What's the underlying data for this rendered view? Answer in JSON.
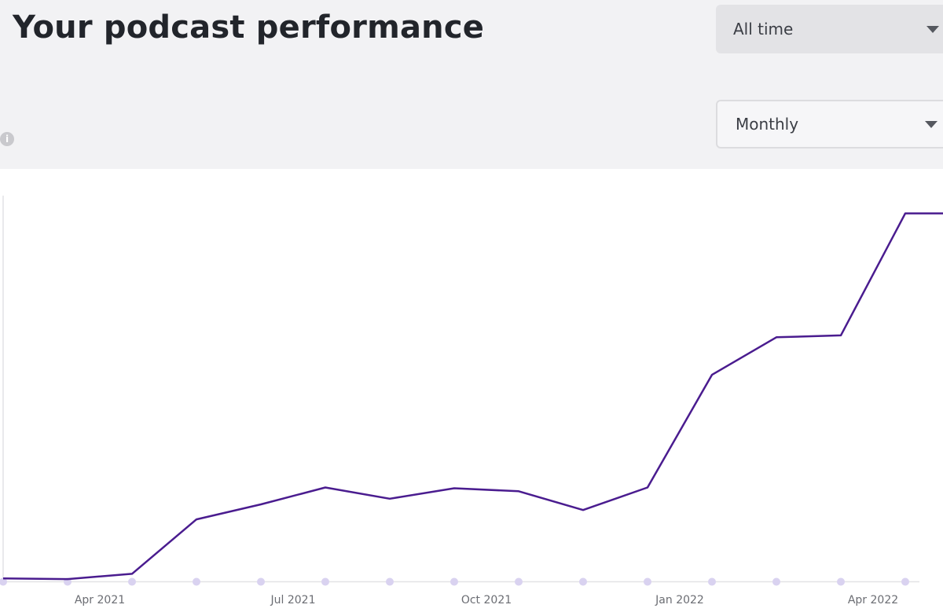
{
  "header": {
    "title": "Your podcast performance",
    "info_icon": "info-icon",
    "range_select": {
      "value": "All time",
      "icon": "chevron-down-icon"
    },
    "interval_select": {
      "value": "Monthly",
      "icon": "chevron-down-icon"
    }
  },
  "colors": {
    "line": "#4a1c8f",
    "marker": "#d9d2f0",
    "axis": "#e2e2e6",
    "header_bg": "#f2f2f4"
  },
  "chart_data": {
    "type": "line",
    "x": [
      "2021-02",
      "2021-03",
      "2021-04",
      "2021-05",
      "2021-06",
      "2021-07",
      "2021-08",
      "2021-09",
      "2021-10",
      "2021-11",
      "2021-12",
      "2022-01",
      "2022-02",
      "2022-03",
      "2022-04",
      "2022-05"
    ],
    "series": [
      {
        "values": [
          0.8,
          0.6,
          2.0,
          16.5,
          20.5,
          25.0,
          22.0,
          24.8,
          24.0,
          19.0,
          25.0,
          55.0,
          65.0,
          65.5,
          98.0,
          98.0
        ]
      }
    ],
    "y_values_note": "",
    "ylim": [
      0,
      100
    ],
    "xticks": [
      {
        "index": 1.5,
        "label": "Apr 2021"
      },
      {
        "index": 4.5,
        "label": "Jul 2021"
      },
      {
        "index": 7.5,
        "label": "Oct 2021"
      },
      {
        "index": 10.5,
        "label": "Jan 2022"
      },
      {
        "index": 13.5,
        "label": "Apr 2022"
      }
    ],
    "grid": false,
    "legend": "none",
    "title": "",
    "xlabel": "",
    "ylabel": ""
  }
}
